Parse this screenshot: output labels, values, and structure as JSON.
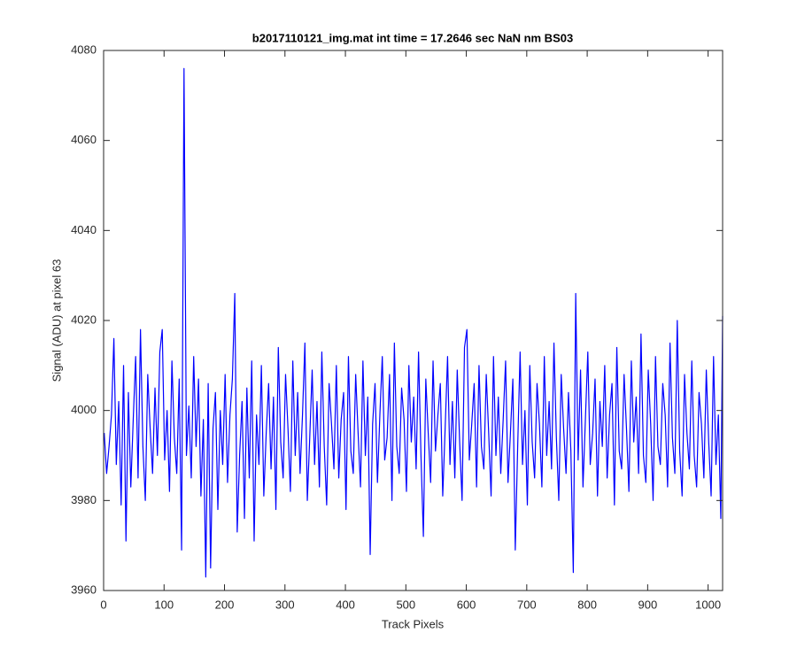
{
  "chart_data": {
    "type": "line",
    "title": "b2017110121_img.mat int time = 17.2646 sec  NaN nm BS03",
    "xlabel": "Track Pixels",
    "ylabel": "Signal (ADU) at pixel 63",
    "xlim": [
      0,
      1024
    ],
    "ylim": [
      3960,
      4080
    ],
    "xticks": [
      0,
      100,
      200,
      300,
      400,
      500,
      600,
      700,
      800,
      900,
      1000
    ],
    "yticks": [
      3960,
      3980,
      4000,
      4020,
      4040,
      4060,
      4080
    ],
    "grid": false,
    "x": [
      1,
      5,
      9,
      13,
      17,
      21,
      25,
      29,
      33,
      37,
      41,
      45,
      49,
      53,
      57,
      61,
      65,
      69,
      73,
      77,
      81,
      85,
      89,
      93,
      97,
      101,
      105,
      109,
      113,
      117,
      121,
      125,
      129,
      133,
      137,
      141,
      145,
      149,
      153,
      157,
      161,
      165,
      169,
      173,
      177,
      181,
      185,
      189,
      193,
      197,
      201,
      205,
      209,
      213,
      217,
      221,
      225,
      229,
      233,
      237,
      241,
      245,
      249,
      253,
      257,
      261,
      265,
      269,
      273,
      277,
      281,
      285,
      289,
      293,
      297,
      301,
      305,
      309,
      313,
      317,
      321,
      325,
      329,
      333,
      337,
      341,
      345,
      349,
      353,
      357,
      361,
      365,
      369,
      373,
      377,
      381,
      385,
      389,
      393,
      397,
      401,
      405,
      409,
      413,
      417,
      421,
      425,
      429,
      433,
      437,
      441,
      445,
      449,
      453,
      457,
      461,
      465,
      469,
      473,
      477,
      481,
      485,
      489,
      493,
      497,
      501,
      505,
      509,
      513,
      517,
      521,
      525,
      529,
      533,
      537,
      541,
      545,
      549,
      553,
      557,
      561,
      565,
      569,
      573,
      577,
      581,
      585,
      589,
      593,
      597,
      601,
      605,
      609,
      613,
      617,
      621,
      625,
      629,
      633,
      637,
      641,
      645,
      649,
      653,
      657,
      661,
      665,
      669,
      673,
      677,
      681,
      685,
      689,
      693,
      697,
      701,
      705,
      709,
      713,
      717,
      721,
      725,
      729,
      733,
      737,
      741,
      745,
      749,
      753,
      757,
      761,
      765,
      769,
      773,
      777,
      781,
      785,
      789,
      793,
      797,
      801,
      805,
      809,
      813,
      817,
      821,
      825,
      829,
      833,
      837,
      841,
      845,
      849,
      853,
      857,
      861,
      865,
      869,
      873,
      877,
      881,
      885,
      889,
      893,
      897,
      901,
      905,
      909,
      913,
      917,
      921,
      925,
      929,
      933,
      937,
      941,
      945,
      949,
      953,
      957,
      961,
      965,
      969,
      973,
      977,
      981,
      985,
      989,
      993,
      997,
      1001,
      1005,
      1009,
      1013,
      1017,
      1021,
      1024
    ],
    "series": [
      {
        "name": "signal",
        "color": "#0000ff",
        "values": [
          3995,
          3986,
          3992,
          3999,
          4016,
          3988,
          4002,
          3979,
          4010,
          3971,
          4004,
          3983,
          3998,
          4012,
          3985,
          4018,
          3992,
          3980,
          4008,
          3996,
          3986,
          4005,
          3990,
          4013,
          4018,
          3989,
          4000,
          3982,
          4011,
          3994,
          3986,
          4007,
          3969,
          4076,
          3990,
          4001,
          3985,
          4012,
          3992,
          4007,
          3981,
          3998,
          3963,
          4006,
          3965,
          3996,
          4004,
          3978,
          4000,
          3988,
          4008,
          3984,
          3999,
          4007,
          4026,
          3973,
          3990,
          4002,
          3976,
          4005,
          3985,
          4011,
          3971,
          3999,
          3988,
          4010,
          3981,
          3995,
          4006,
          3987,
          4003,
          3978,
          4014,
          3993,
          3985,
          4008,
          3996,
          3982,
          4011,
          3990,
          4004,
          3986,
          3999,
          4015,
          3980,
          3994,
          4009,
          3988,
          4002,
          3983,
          4013,
          3992,
          3979,
          4006,
          3997,
          3987,
          4010,
          3985,
          3998,
          4004,
          3978,
          4012,
          3991,
          3986,
          4008,
          3995,
          3983,
          4011,
          3990,
          4003,
          3968,
          3997,
          4006,
          3984,
          3999,
          4012,
          3989,
          3994,
          4008,
          3980,
          4015,
          3992,
          3986,
          4005,
          3998,
          3982,
          4010,
          3993,
          4003,
          3987,
          4013,
          3990,
          3972,
          4007,
          3995,
          3984,
          4011,
          3991,
          3999,
          4006,
          3981,
          3996,
          4012,
          3988,
          4002,
          3985,
          4009,
          3993,
          3980,
          4014,
          4018,
          3989,
          3997,
          4006,
          3983,
          4010,
          3992,
          3987,
          4008,
          3995,
          3981,
          4012,
          3990,
          4003,
          3986,
          3998,
          4011,
          3984,
          3995,
          4007,
          3969,
          3992,
          4013,
          3988,
          4000,
          3979,
          4010,
          3993,
          3985,
          4006,
          3997,
          3983,
          4012,
          3990,
          4002,
          3987,
          4015,
          3994,
          3980,
          4008,
          3996,
          3986,
          4004,
          3991,
          3964,
          4026,
          3989,
          4009,
          3983,
          3998,
          4013,
          3988,
          3995,
          4007,
          3981,
          4002,
          3992,
          4010,
          3985,
          3999,
          4006,
          3979,
          4014,
          3991,
          3987,
          4008,
          3996,
          3982,
          4011,
          3993,
          4003,
          3986,
          4017,
          3990,
          3984,
          4009,
          3997,
          3980,
          4012,
          3992,
          3988,
          4006,
          3999,
          3983,
          4015,
          3994,
          3986,
          4020,
          3991,
          3981,
          4008,
          3995,
          3987,
          4011,
          3990,
          3983,
          4004,
          3997,
          3985,
          4009,
          3993,
          3981,
          4012,
          3988,
          3999,
          3976,
          4021
        ]
      }
    ]
  }
}
